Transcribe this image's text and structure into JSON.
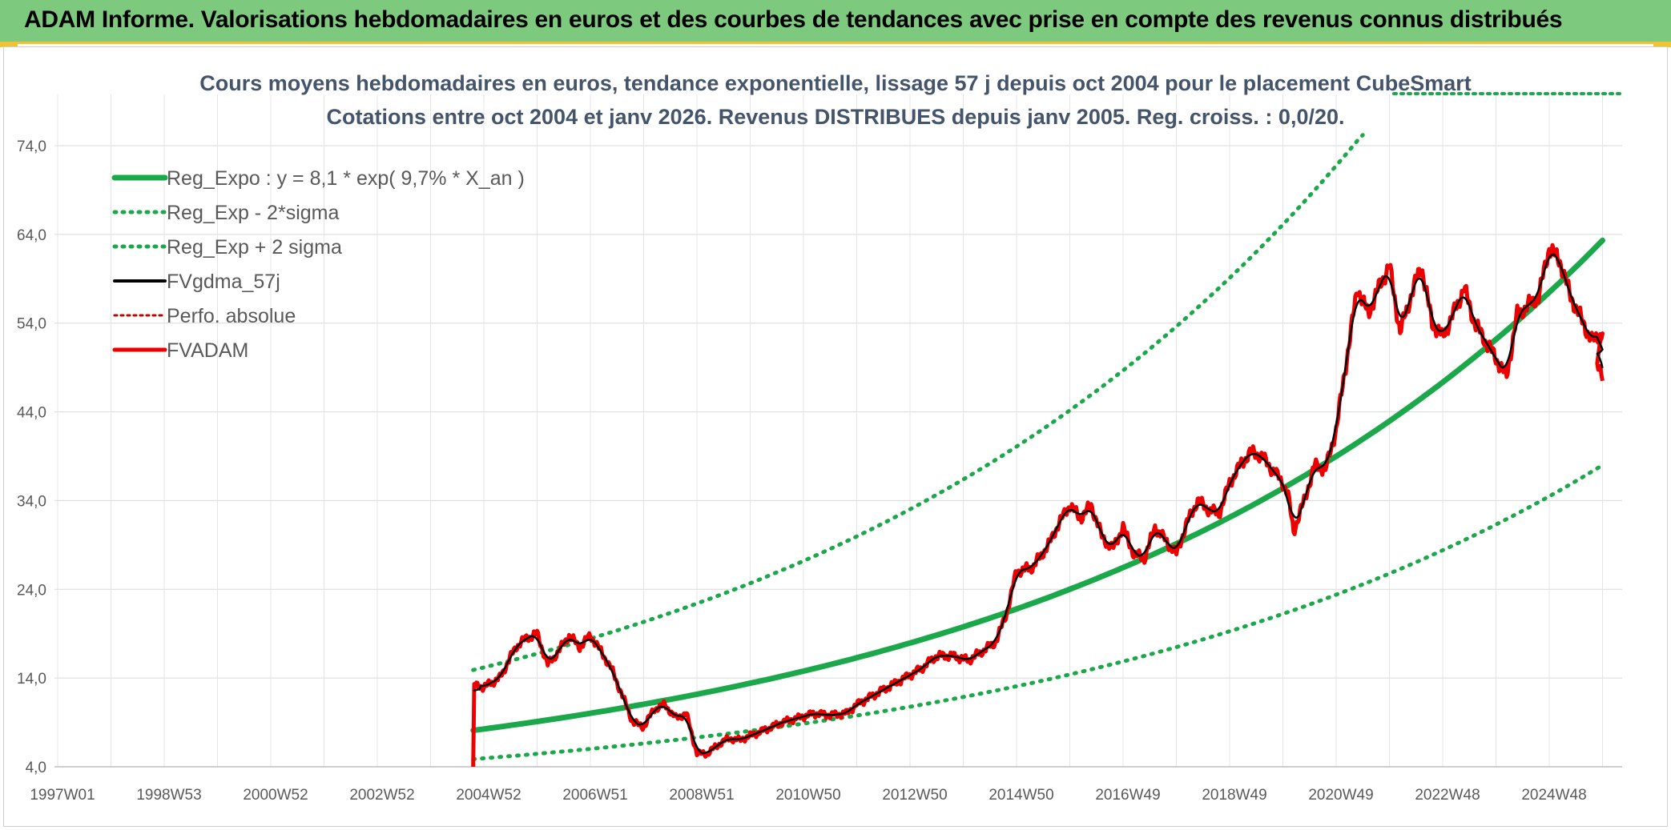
{
  "header": {
    "title": "ADAM Informe. Valorisations hebdomadaires en euros et des courbes de tendances avec prise en compte des revenus connus distribués"
  },
  "colors": {
    "header_bg": "#7dc97d",
    "accent": "#f1c232",
    "reg_expo": "#1ba84a",
    "fvgdma": "#000000",
    "fvadam": "#ee0000",
    "perfo": "#c00000",
    "title_text": "#44546a"
  },
  "chart_data": {
    "type": "line",
    "title": "Cours moyens hebdomadaires en euros, tendance exponentielle, lissage 57 j depuis oct 2004 pour le placement CubeSmart",
    "subtitle": "Cotations entre oct 2004 et janv 2026. Revenus DISTRIBUES depuis janv 2005. Reg. croiss. : 0,0/20.",
    "xlabel": "",
    "ylabel": "",
    "x_ticks": [
      "1997W01",
      "1998W53",
      "2000W52",
      "2002W52",
      "2004W52",
      "2006W51",
      "2008W51",
      "2010W50",
      "2012W50",
      "2014W50",
      "2016W49",
      "2018W49",
      "2020W49",
      "2022W48",
      "2024W48"
    ],
    "y_ticks": [
      "4,0",
      "14,0",
      "24,0",
      "34,0",
      "44,0",
      "54,0",
      "64,0",
      "74,0"
    ],
    "ylim": [
      4,
      80
    ],
    "xlim": [
      1997.0,
      2026.0
    ],
    "grid": true,
    "legend_position": "top-left",
    "legend": [
      {
        "label": "Reg_Expo : y = 8,1 * exp( 9,7% *  X_an )",
        "style": "solid-thick",
        "color": "#1ba84a"
      },
      {
        "label": "Reg_Exp - 2*sigma",
        "style": "dotted",
        "color": "#1ba84a"
      },
      {
        "label": "Reg_Exp + 2 sigma",
        "style": "dotted",
        "color": "#1ba84a"
      },
      {
        "label": "FVgdma_57j",
        "style": "solid",
        "color": "#000000"
      },
      {
        "label": "Perfo. absolue",
        "style": "dotted-thin",
        "color": "#c00000"
      },
      {
        "label": "FVADAM",
        "style": "solid-thick",
        "color": "#ee0000"
      }
    ],
    "regression": {
      "a": 8.1,
      "rate": 0.097,
      "start_year": 2004.8,
      "end_year": 2026.0,
      "lower_factor": 0.6,
      "upper_factor": 1.84
    },
    "fvadam": {
      "x": [
        2004.8,
        2004.82,
        2005.0,
        2005.3,
        2005.6,
        2005.8,
        2006.0,
        2006.2,
        2006.4,
        2006.6,
        2006.8,
        2007.0,
        2007.2,
        2007.4,
        2007.6,
        2007.8,
        2008.0,
        2008.2,
        2008.4,
        2008.6,
        2008.8,
        2009.0,
        2009.2,
        2009.4,
        2009.6,
        2009.8,
        2010.0,
        2010.3,
        2010.6,
        2010.9,
        2011.2,
        2011.5,
        2011.8,
        2012.0,
        2012.3,
        2012.6,
        2012.9,
        2013.2,
        2013.5,
        2013.8,
        2014.1,
        2014.4,
        2014.6,
        2014.8,
        2015.0,
        2015.3,
        2015.6,
        2015.8,
        2016.0,
        2016.2,
        2016.4,
        2016.6,
        2016.8,
        2017.0,
        2017.2,
        2017.4,
        2017.6,
        2017.8,
        2018.0,
        2018.2,
        2018.4,
        2018.6,
        2018.8,
        2019.0,
        2019.2,
        2019.4,
        2019.6,
        2019.8,
        2020.0,
        2020.1,
        2020.2,
        2020.4,
        2020.6,
        2020.8,
        2021.0,
        2021.2,
        2021.4,
        2021.6,
        2021.8,
        2022.0,
        2022.2,
        2022.4,
        2022.6,
        2022.8,
        2023.0,
        2023.2,
        2023.4,
        2023.6,
        2023.8,
        2024.0,
        2024.2,
        2024.4,
        2024.6,
        2024.8,
        2025.0,
        2025.2,
        2025.4,
        2025.6,
        2025.8,
        2026.0
      ],
      "y": [
        4.0,
        13.2,
        13.0,
        14.0,
        17.5,
        18.5,
        19.0,
        15.5,
        17.0,
        18.8,
        17.5,
        18.8,
        17.0,
        15.0,
        12.0,
        9.0,
        8.5,
        10.5,
        11.0,
        9.5,
        10.0,
        5.5,
        5.5,
        6.5,
        7.2,
        7.0,
        7.5,
        8.2,
        9.0,
        9.5,
        10.0,
        9.8,
        10.0,
        11.0,
        12.0,
        13.0,
        14.0,
        15.0,
        16.5,
        16.5,
        16.0,
        17.2,
        18.0,
        21.0,
        26.0,
        26.5,
        29.0,
        31.5,
        33.5,
        32.0,
        33.5,
        30.0,
        28.5,
        31.0,
        28.0,
        27.5,
        31.0,
        29.5,
        28.0,
        31.5,
        34.0,
        33.0,
        32.5,
        36.0,
        38.0,
        39.5,
        39.0,
        37.5,
        36.0,
        34.5,
        30.5,
        34.0,
        38.0,
        37.5,
        42.0,
        50.0,
        58.0,
        55.0,
        58.0,
        60.5,
        53.0,
        57.0,
        60.5,
        54.0,
        52.5,
        55.0,
        58.0,
        54.0,
        52.0,
        50.0,
        48.0,
        55.0,
        56.0,
        57.0,
        62.5,
        61.0,
        57.0,
        54.5,
        52.0,
        53.0
      ],
      "tail": {
        "x": [
          2025.8,
          2025.9,
          2026.0
        ],
        "y": [
          51.0,
          49.0,
          48.2
        ]
      }
    }
  }
}
